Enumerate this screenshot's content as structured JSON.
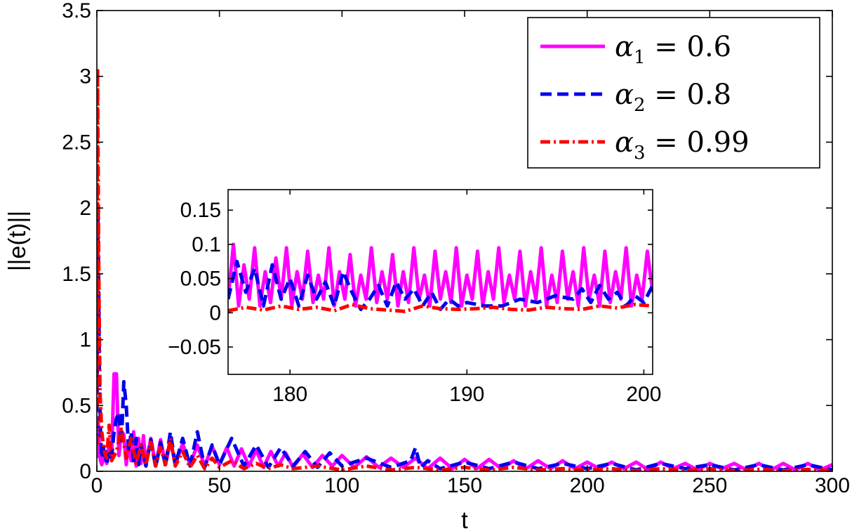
{
  "chart_data": [
    {
      "id": "main",
      "type": "line",
      "title": "",
      "xlabel": "t",
      "ylabel": "||e(t)||",
      "xlim": [
        0,
        300
      ],
      "ylim": [
        0,
        3.5
      ],
      "xticks": [
        0,
        50,
        100,
        150,
        200,
        250,
        300
      ],
      "xtick_labels": [
        "0",
        "50",
        "100",
        "150",
        "200",
        "250",
        "300"
      ],
      "yticks": [
        0,
        0.5,
        1,
        1.5,
        2,
        2.5,
        3,
        3.5
      ],
      "ytick_labels": [
        "0",
        "0.5",
        "1",
        "1.5",
        "2",
        "2.5",
        "3",
        "3.5"
      ],
      "legend_position": "top-right",
      "series": [
        {
          "name": "α1 = 0.6",
          "legend": {
            "symbol": "α",
            "sub": "1",
            "rest": " = 0.6"
          },
          "color": "#ff00ff",
          "style": "solid",
          "x": [
            0,
            0.5,
            1,
            1.5,
            2,
            3,
            4,
            5,
            6,
            7,
            8,
            9,
            10,
            11,
            12,
            13,
            14,
            15,
            16,
            17,
            18,
            19,
            20,
            22,
            24,
            26,
            28,
            30,
            32,
            35,
            38,
            41,
            44,
            47,
            50,
            53,
            56,
            59,
            62,
            65,
            68,
            71,
            74,
            77,
            80,
            84,
            88,
            92,
            96,
            100,
            105,
            110,
            115,
            120,
            125,
            130,
            135,
            140,
            145,
            150,
            155,
            160,
            165,
            170,
            175,
            180,
            185,
            190,
            195,
            200,
            205,
            210,
            215,
            220,
            225,
            230,
            235,
            240,
            245,
            250,
            255,
            260,
            265,
            270,
            275,
            280,
            285,
            290,
            295,
            300
          ],
          "values": [
            0.1,
            0.4,
            0.2,
            0.08,
            0.05,
            0.12,
            0.06,
            0.22,
            0.1,
            0.74,
            0.74,
            0.12,
            0.3,
            0.28,
            0.05,
            0.22,
            0.08,
            0.3,
            0.04,
            0.25,
            0.06,
            0.27,
            0.05,
            0.25,
            0.04,
            0.24,
            0.05,
            0.23,
            0.05,
            0.21,
            0.05,
            0.2,
            0.04,
            0.19,
            0.05,
            0.18,
            0.04,
            0.17,
            0.04,
            0.16,
            0.03,
            0.15,
            0.04,
            0.14,
            0.03,
            0.13,
            0.03,
            0.12,
            0.04,
            0.12,
            0.03,
            0.11,
            0.03,
            0.1,
            0.03,
            0.1,
            0.02,
            0.1,
            0.02,
            0.09,
            0.02,
            0.09,
            0.02,
            0.08,
            0.02,
            0.08,
            0.02,
            0.08,
            0.02,
            0.07,
            0.02,
            0.07,
            0.02,
            0.07,
            0.01,
            0.07,
            0.02,
            0.06,
            0.01,
            0.06,
            0.02,
            0.06,
            0.01,
            0.06,
            0.01,
            0.06,
            0.01,
            0.06,
            0.01,
            0.05
          ]
        },
        {
          "name": "α2 = 0.8",
          "legend": {
            "symbol": "α",
            "sub": "2",
            "rest": " = 0.8"
          },
          "color": "#0000ee",
          "style": "dashed",
          "x": [
            0,
            0.5,
            1,
            1.5,
            2,
            3,
            4,
            5,
            6,
            7,
            8,
            9,
            10,
            11,
            12,
            13,
            14,
            15,
            16,
            17,
            18,
            20,
            22,
            24,
            26,
            28,
            30,
            32,
            35,
            38,
            41,
            44,
            47,
            50,
            55,
            60,
            65,
            70,
            75,
            80,
            85,
            90,
            95,
            100,
            110,
            120,
            128,
            130,
            132,
            135,
            140,
            150,
            160,
            170,
            180,
            190,
            200,
            210,
            220,
            230,
            240,
            250,
            260,
            270,
            280,
            290,
            300
          ],
          "values": [
            0.2,
            2.0,
            0.8,
            0.3,
            0.1,
            0.2,
            0.05,
            0.15,
            0.1,
            0.3,
            0.4,
            0.45,
            0.2,
            0.68,
            0.5,
            0.15,
            0.3,
            0.05,
            0.25,
            0.05,
            0.2,
            0.04,
            0.24,
            0.03,
            0.22,
            0.04,
            0.3,
            0.05,
            0.25,
            0.04,
            0.3,
            0.03,
            0.2,
            0.05,
            0.25,
            0.04,
            0.2,
            0.03,
            0.18,
            0.04,
            0.15,
            0.03,
            0.14,
            0.04,
            0.1,
            0.03,
            0.08,
            0.18,
            0.03,
            0.08,
            0.02,
            0.07,
            0.02,
            0.07,
            0.02,
            0.06,
            0.02,
            0.06,
            0.01,
            0.06,
            0.02,
            0.05,
            0.01,
            0.05,
            0.01,
            0.05,
            0.01
          ]
        },
        {
          "name": "α3 = 0.99",
          "legend": {
            "symbol": "α",
            "sub": "3",
            "rest": " = 0.99"
          },
          "color": "#ff0000",
          "style": "dashdot",
          "x": [
            0,
            0.3,
            0.8,
            1.3,
            2,
            3,
            4,
            5,
            6,
            8,
            10,
            12,
            14,
            16,
            18,
            20,
            22,
            24,
            26,
            28,
            30,
            32,
            35,
            38,
            41,
            44,
            47,
            50,
            55,
            60,
            65,
            70,
            75,
            80,
            90,
            100,
            110,
            120,
            130,
            140,
            150,
            160,
            170,
            180,
            190,
            200,
            210,
            220,
            230,
            240,
            250,
            260,
            270,
            280,
            290,
            300
          ],
          "values": [
            0.2,
            3.06,
            1.5,
            0.6,
            0.3,
            0.15,
            0.1,
            0.35,
            0.08,
            0.15,
            0.32,
            0.1,
            0.25,
            0.06,
            0.2,
            0.05,
            0.22,
            0.04,
            0.18,
            0.05,
            0.25,
            0.04,
            0.15,
            0.03,
            0.12,
            0.02,
            0.1,
            0.03,
            0.08,
            0.02,
            0.06,
            0.02,
            0.05,
            0.02,
            0.04,
            0.01,
            0.04,
            0.01,
            0.03,
            0.01,
            0.03,
            0.01,
            0.03,
            0.01,
            0.02,
            0.01,
            0.02,
            0.005,
            0.02,
            0.005,
            0.02,
            0.005,
            0.015,
            0.005,
            0.015,
            0.005
          ]
        }
      ]
    },
    {
      "id": "inset",
      "type": "line",
      "title": "",
      "xlabel": "",
      "ylabel": "",
      "xlim": [
        176.5,
        200.5
      ],
      "ylim": [
        -0.09,
        0.18
      ],
      "xticks": [
        180,
        190,
        200
      ],
      "xtick_labels": [
        "180",
        "190",
        "200"
      ],
      "yticks": [
        -0.05,
        0,
        0.05,
        0.1,
        0.15
      ],
      "ytick_labels": [
        "−0.05",
        "0",
        "0.05",
        "0.1",
        "0.15"
      ],
      "series": [
        {
          "name": "α1 = 0.6",
          "color": "#ff00ff",
          "style": "solid",
          "x": [
            176.5,
            176.8,
            177.1,
            177.4,
            177.7,
            178.0,
            178.3,
            178.6,
            178.9,
            179.2,
            179.5,
            179.8,
            180.1,
            180.4,
            180.7,
            181.0,
            181.3,
            181.6,
            181.9,
            182.2,
            182.5,
            182.8,
            183.1,
            183.4,
            183.7,
            184.0,
            184.3,
            184.6,
            184.9,
            185.2,
            185.5,
            185.8,
            186.1,
            186.4,
            186.7,
            187.0,
            187.3,
            187.6,
            187.9,
            188.2,
            188.5,
            188.8,
            189.1,
            189.4,
            189.7,
            190.0,
            190.3,
            190.6,
            190.9,
            191.2,
            191.5,
            191.8,
            192.1,
            192.4,
            192.7,
            193.0,
            193.3,
            193.6,
            193.9,
            194.2,
            194.5,
            194.8,
            195.1,
            195.4,
            195.7,
            196.0,
            196.3,
            196.6,
            196.9,
            197.2,
            197.5,
            197.8,
            198.1,
            198.4,
            198.7,
            199.0,
            199.3,
            199.6,
            199.9,
            200.2,
            200.5
          ],
          "values": [
            0.02,
            0.1,
            0.01,
            0.07,
            0.02,
            0.095,
            0.01,
            0.06,
            0.015,
            0.08,
            0.02,
            0.095,
            0.01,
            0.06,
            0.02,
            0.09,
            0.015,
            0.055,
            0.02,
            0.095,
            0.01,
            0.06,
            0.02,
            0.085,
            0.01,
            0.055,
            0.02,
            0.095,
            0.015,
            0.06,
            0.02,
            0.085,
            0.01,
            0.06,
            0.015,
            0.095,
            0.02,
            0.055,
            0.01,
            0.09,
            0.02,
            0.06,
            0.015,
            0.095,
            0.01,
            0.055,
            0.02,
            0.09,
            0.01,
            0.06,
            0.02,
            0.095,
            0.015,
            0.055,
            0.02,
            0.09,
            0.01,
            0.06,
            0.02,
            0.095,
            0.01,
            0.055,
            0.015,
            0.09,
            0.02,
            0.06,
            0.01,
            0.095,
            0.02,
            0.055,
            0.01,
            0.09,
            0.015,
            0.06,
            0.02,
            0.095,
            0.01,
            0.055,
            0.02,
            0.09,
            0.03
          ]
        },
        {
          "name": "α2 = 0.8",
          "color": "#0000ee",
          "style": "dashed",
          "x": [
            176.5,
            177.0,
            177.5,
            178.0,
            178.5,
            179.0,
            179.5,
            180.0,
            180.5,
            181.0,
            181.5,
            182.0,
            182.5,
            183.0,
            183.5,
            184.0,
            184.5,
            185.0,
            185.5,
            186.0,
            186.5,
            187.0,
            187.5,
            188.0,
            188.5,
            189.0,
            189.5,
            190.0,
            191.0,
            192.0,
            193.0,
            194.0,
            195.0,
            196.0,
            196.5,
            197.0,
            197.5,
            198.0,
            198.5,
            199.0,
            199.5,
            200.0,
            200.5
          ],
          "values": [
            0.02,
            0.075,
            0.03,
            0.065,
            0.01,
            0.07,
            0.02,
            0.05,
            0.01,
            0.055,
            0.02,
            0.045,
            0.01,
            0.06,
            0.03,
            0.005,
            0.02,
            0.04,
            0.01,
            0.045,
            0.02,
            0.035,
            0.01,
            0.03,
            0.005,
            0.02,
            0.01,
            0.015,
            0.01,
            0.01,
            0.02,
            0.015,
            0.025,
            0.02,
            0.035,
            0.015,
            0.04,
            0.02,
            0.03,
            0.01,
            0.025,
            0.015,
            0.04
          ]
        },
        {
          "name": "α3 = 0.99",
          "color": "#ff0000",
          "style": "dashdot",
          "x": [
            176.5,
            177.5,
            178.5,
            179.5,
            180.5,
            181.5,
            182.5,
            183.5,
            184.5,
            185.5,
            186.5,
            187.5,
            188.5,
            189.5,
            190.5,
            191.5,
            192.5,
            193.5,
            194.5,
            195.5,
            196.5,
            197.5,
            198.5,
            199.5,
            200.5
          ],
          "values": [
            0.003,
            0.008,
            0.004,
            0.01,
            0.005,
            0.008,
            0.003,
            0.012,
            0.006,
            0.004,
            0.002,
            0.01,
            0.006,
            0.005,
            0.006,
            0.008,
            0.005,
            0.004,
            0.008,
            0.006,
            0.005,
            0.01,
            0.007,
            0.012,
            0.01
          ]
        }
      ]
    }
  ]
}
